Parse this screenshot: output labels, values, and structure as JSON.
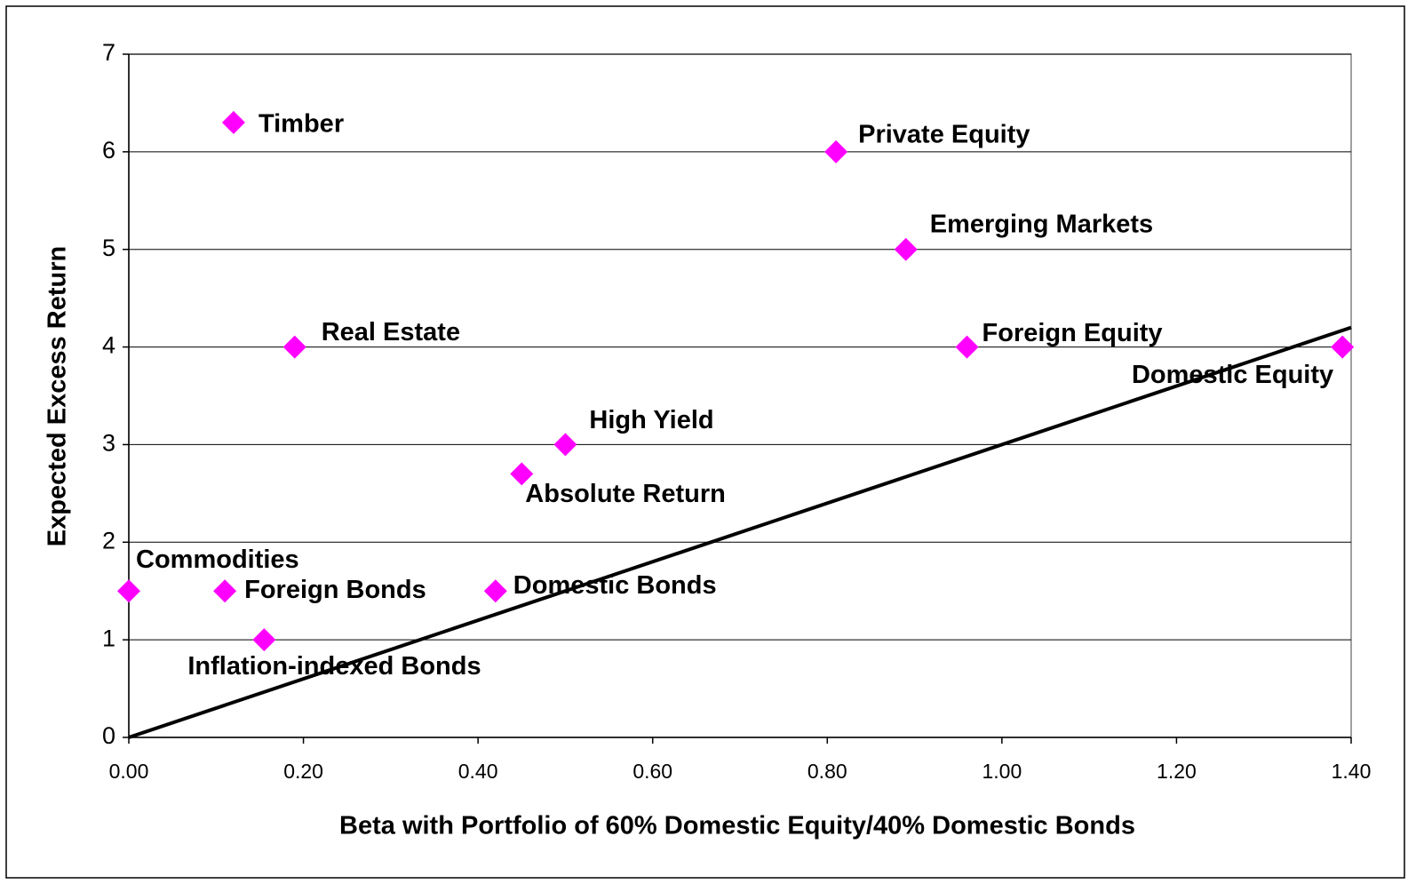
{
  "chart_data": {
    "type": "scatter",
    "xlabel": "Beta with Portfolio of 60% Domestic Equity/40% Domestic Bonds",
    "ylabel": "Expected Excess Return",
    "labels": [
      "Timber",
      "Private Equity",
      "Emerging Markets",
      "Real Estate",
      "Foreign Equity",
      "Domestic Equity",
      "High Yield",
      "Absolute Return",
      "Commodities",
      "Foreign Bonds",
      "Domestic Bonds",
      "Inflation-indexed Bonds"
    ],
    "x": [
      0.12,
      0.81,
      0.89,
      0.19,
      0.96,
      1.39,
      0.5,
      0.45,
      0.0,
      0.11,
      0.42,
      0.155
    ],
    "y": [
      6.3,
      6,
      5,
      4,
      4,
      4,
      3,
      2.7,
      1.5,
      1.5,
      1.5,
      1
    ],
    "color": "#ff00ff",
    "line": {
      "x": [
        0,
        1.4
      ],
      "y": [
        0,
        4.2
      ],
      "color": "#000000"
    },
    "xlim": [
      0,
      1.4
    ],
    "ylim": [
      0,
      7
    ],
    "xticks": [
      {
        "value": 0,
        "label": "0.00"
      },
      {
        "value": 0.2,
        "label": "0.20"
      },
      {
        "value": 0.4,
        "label": "0.40"
      },
      {
        "value": 0.6,
        "label": "0.60"
      },
      {
        "value": 0.8,
        "label": "0.80"
      },
      {
        "value": 1,
        "label": "1.00"
      },
      {
        "value": 1.2,
        "label": "1.20"
      },
      {
        "value": 1.4,
        "label": "1.40"
      }
    ],
    "yticks": [
      0,
      1,
      2,
      3,
      4,
      5,
      6,
      7
    ],
    "grid": true
  }
}
